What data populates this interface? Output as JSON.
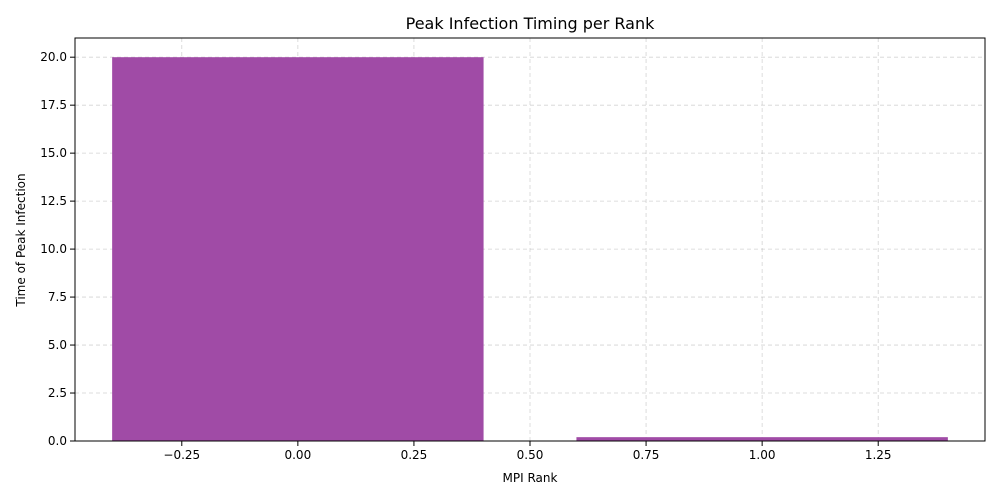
{
  "chart_data": {
    "type": "bar",
    "title": "Peak Infection Timing per Rank",
    "xlabel": "MPI Rank",
    "ylabel": "Time of Peak Infection",
    "x": [
      0,
      1
    ],
    "values": [
      20.0,
      0.2
    ],
    "bar_width": 0.8,
    "xlim": [
      -0.48,
      1.48
    ],
    "ylim": [
      0,
      21
    ],
    "xticks": [
      -0.25,
      0.0,
      0.25,
      0.5,
      0.75,
      1.0,
      1.25
    ],
    "xtick_labels": [
      "−0.25",
      "0.00",
      "0.25",
      "0.50",
      "0.75",
      "1.00",
      "1.25"
    ],
    "yticks": [
      0,
      2.5,
      5,
      7.5,
      10,
      12.5,
      15,
      17.5,
      20
    ],
    "ytick_labels": [
      "0.0",
      "2.5",
      "5.0",
      "7.5",
      "10.0",
      "12.5",
      "15.0",
      "17.5",
      "20.0"
    ],
    "grid": true,
    "bar_color": "#a04ba6"
  }
}
